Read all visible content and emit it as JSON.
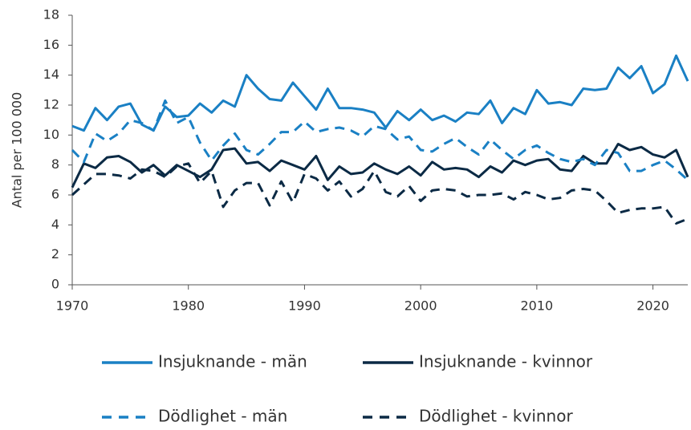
{
  "chart_data": {
    "type": "line",
    "y_label": "Antal per 100 000",
    "x": [
      1970,
      1971,
      1972,
      1973,
      1974,
      1975,
      1976,
      1977,
      1978,
      1979,
      1980,
      1981,
      1982,
      1983,
      1984,
      1985,
      1986,
      1987,
      1988,
      1989,
      1990,
      1991,
      1992,
      1993,
      1994,
      1995,
      1996,
      1997,
      1998,
      1999,
      2000,
      2001,
      2002,
      2003,
      2004,
      2005,
      2006,
      2007,
      2008,
      2009,
      2010,
      2011,
      2012,
      2013,
      2014,
      2015,
      2016,
      2017,
      2018,
      2019,
      2020,
      2021,
      2022,
      2023
    ],
    "xlim": [
      1970,
      2023
    ],
    "xticks": [
      1970,
      1980,
      1990,
      2000,
      2010,
      2020
    ],
    "ylim": [
      0,
      18
    ],
    "yticks": [
      0,
      2,
      4,
      6,
      8,
      10,
      12,
      14,
      16,
      18
    ],
    "grid": false,
    "legend_position": "bottom",
    "series": [
      {
        "name": "Insjuknande - män",
        "color": "#1a80c4",
        "dashed": false,
        "values": [
          10.6,
          10.3,
          11.8,
          11.0,
          11.9,
          12.1,
          10.7,
          10.3,
          11.9,
          11.2,
          11.3,
          12.1,
          11.5,
          12.3,
          11.9,
          14.0,
          13.1,
          12.4,
          12.3,
          13.5,
          12.6,
          11.7,
          13.1,
          11.8,
          11.8,
          11.7,
          11.5,
          10.5,
          11.6,
          11.0,
          11.7,
          11.0,
          11.3,
          10.9,
          11.5,
          11.4,
          12.3,
          10.8,
          11.8,
          11.4,
          13.0,
          12.1,
          12.2,
          12.0,
          13.1,
          13.0,
          13.1,
          14.5,
          13.8,
          14.6,
          12.8,
          13.4,
          15.3,
          13.6
        ]
      },
      {
        "name": "Insjuknande - kvinnor",
        "color": "#0b2a45",
        "dashed": false,
        "values": [
          6.5,
          8.1,
          7.8,
          8.5,
          8.6,
          8.2,
          7.5,
          8.0,
          7.3,
          8.0,
          7.6,
          7.2,
          7.7,
          9.0,
          9.1,
          8.1,
          8.2,
          7.6,
          8.3,
          8.0,
          7.7,
          8.6,
          7.0,
          7.9,
          7.4,
          7.5,
          8.1,
          7.7,
          7.4,
          7.9,
          7.3,
          8.2,
          7.7,
          7.8,
          7.7,
          7.2,
          7.9,
          7.5,
          8.3,
          8.0,
          8.3,
          8.4,
          7.7,
          7.6,
          8.6,
          8.1,
          8.1,
          9.4,
          9.0,
          9.2,
          8.7,
          8.5,
          9.0,
          7.2
        ]
      },
      {
        "name": "Dödlighet - män",
        "color": "#1a80c4",
        "dashed": true,
        "values": [
          9.0,
          8.2,
          10.1,
          9.6,
          10.1,
          11.0,
          10.8,
          10.3,
          12.3,
          10.8,
          11.2,
          9.5,
          8.3,
          9.3,
          10.1,
          9.0,
          8.7,
          9.4,
          10.2,
          10.2,
          10.9,
          10.2,
          10.4,
          10.5,
          10.3,
          9.9,
          10.6,
          10.4,
          9.7,
          9.9,
          9.0,
          8.9,
          9.4,
          9.8,
          9.2,
          8.7,
          9.7,
          9.0,
          8.4,
          9.0,
          9.3,
          8.8,
          8.4,
          8.2,
          8.4,
          8.0,
          9.0,
          8.8,
          7.6,
          7.6,
          8.0,
          8.3,
          7.7,
          7.0
        ]
      },
      {
        "name": "Dödlighet - kvinnor",
        "color": "#0b2a45",
        "dashed": true,
        "values": [
          6.0,
          6.7,
          7.4,
          7.4,
          7.3,
          7.1,
          7.7,
          7.6,
          7.2,
          7.9,
          8.1,
          6.8,
          7.6,
          5.2,
          6.3,
          6.8,
          6.8,
          5.3,
          6.9,
          5.5,
          7.4,
          7.1,
          6.3,
          6.9,
          5.9,
          6.4,
          7.6,
          6.2,
          5.9,
          6.6,
          5.6,
          6.3,
          6.4,
          6.3,
          5.9,
          6.0,
          6.0,
          6.1,
          5.7,
          6.2,
          6.0,
          5.7,
          5.8,
          6.3,
          6.4,
          6.3,
          5.6,
          4.8,
          5.0,
          5.1,
          5.1,
          5.2,
          4.1,
          4.4
        ]
      }
    ]
  }
}
